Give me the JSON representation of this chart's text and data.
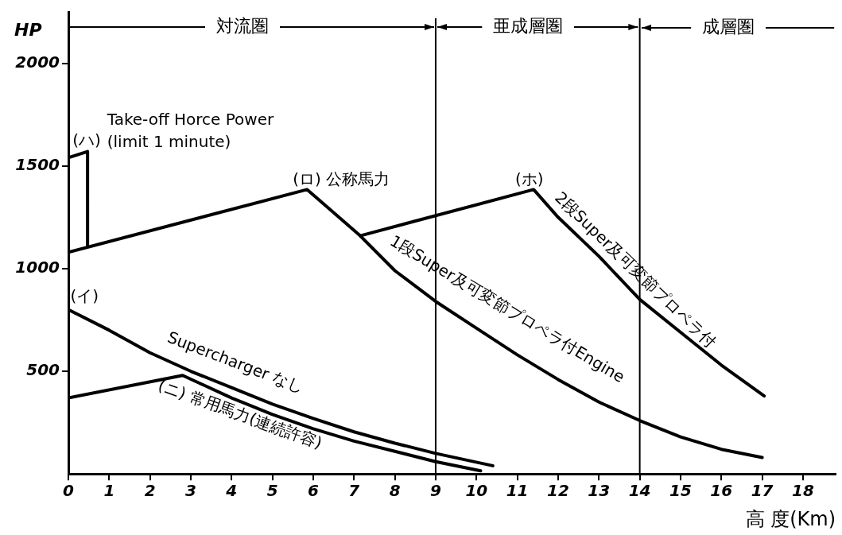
{
  "chart_data": {
    "type": "line",
    "ylabel": "HP",
    "xlabel": "高 度(Km)",
    "xlim": [
      0,
      18.8
    ],
    "ylim": [
      0,
      2250
    ],
    "xticks": [
      0,
      1,
      2,
      3,
      4,
      5,
      6,
      7,
      8,
      9,
      10,
      11,
      12,
      13,
      14,
      15,
      16,
      17,
      18
    ],
    "yticks": [
      500,
      1000,
      1500,
      2000
    ],
    "legend": false,
    "marker": "none",
    "line_style": "solid",
    "series": [
      {
        "color": "#000000",
        "x": [
          0,
          1,
          2,
          3,
          4,
          5,
          6,
          7,
          8,
          9,
          10.4
        ],
        "values": [
          800,
          700,
          590,
          500,
          420,
          340,
          270,
          205,
          150,
          100,
          40
        ]
      },
      {
        "color": "#000000",
        "x": [
          0,
          2.8,
          4,
          5,
          6,
          7,
          8,
          9,
          10.1
        ],
        "values": [
          370,
          480,
          370,
          290,
          220,
          160,
          110,
          60,
          15
        ]
      },
      {
        "color": "#000000",
        "x": [
          0,
          0.47,
          0.47
        ],
        "values": [
          1540,
          1570,
          1110
        ]
      },
      {
        "color": "#000000",
        "x": [
          0,
          5.85,
          7.15,
          8,
          9,
          10,
          11,
          12,
          13,
          14,
          15,
          16,
          17
        ],
        "values": [
          1080,
          1385,
          1160,
          990,
          840,
          710,
          580,
          460,
          350,
          260,
          180,
          120,
          80
        ]
      },
      {
        "color": "#000000",
        "x": [
          7.15,
          11.4,
          12,
          13,
          14,
          15,
          16,
          17.05
        ],
        "values": [
          1160,
          1385,
          1250,
          1060,
          850,
          690,
          530,
          380
        ]
      }
    ],
    "ref_lines": [
      {
        "axis": "x",
        "value": 9
      },
      {
        "axis": "x",
        "value": 14
      }
    ],
    "annotations": [
      {
        "text": "対流圏",
        "x": 9,
        "y": 2175
      },
      {
        "text": "亜成層圏",
        "x": 14,
        "y": 2175
      },
      "成層圏",
      "(ハ)",
      "Take-off Horce Power\n(limit 1 minute)",
      "(ロ) 公称馬力",
      "(ホ)",
      "(イ)",
      "Supercharger なし",
      "(ニ) 常用馬力(連続許容)",
      "1段Super及可変節プロペラ付Engine",
      "2段Super及可変節プロペラ付"
    ]
  }
}
